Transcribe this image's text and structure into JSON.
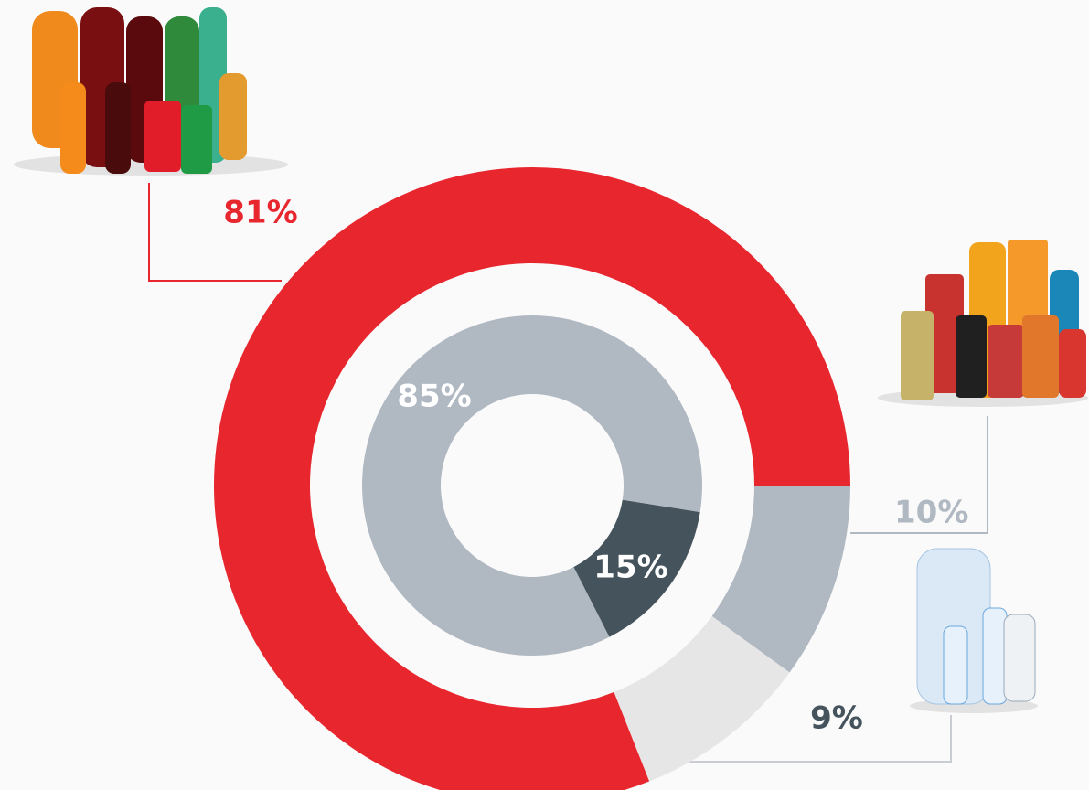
{
  "chart_data": {
    "type": "donut",
    "rings": [
      {
        "values": [
          10,
          9,
          81
        ],
        "value_labels": [
          "10%",
          "9%",
          "81%"
        ],
        "colors": [
          "#b0b8c2",
          "#e6e6e6",
          "#e8262e"
        ]
      },
      {
        "values": [
          15,
          85
        ],
        "value_labels": [
          "15%",
          "85%"
        ],
        "colors": [
          "#45535c",
          "#b0b8c2"
        ]
      }
    ]
  }
}
